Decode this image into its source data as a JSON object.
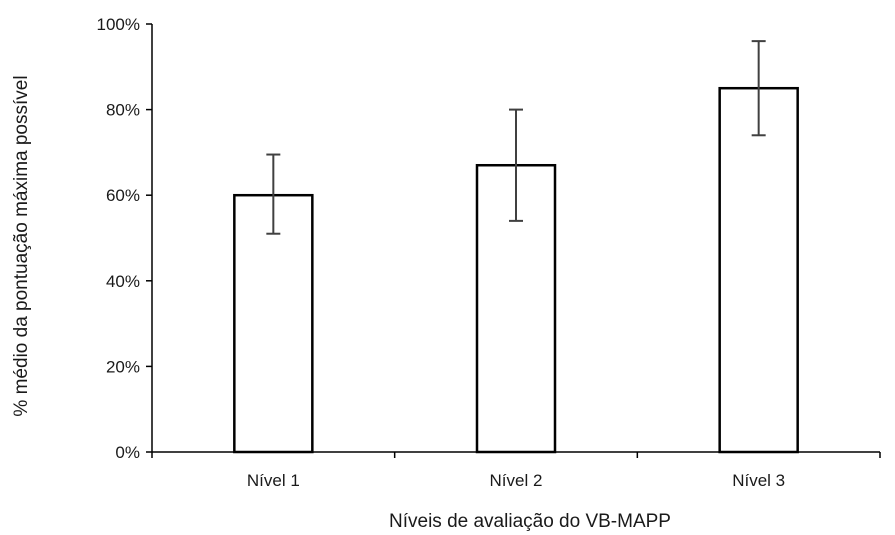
{
  "chart_data": {
    "type": "bar",
    "categories": [
      "Nível 1",
      "Nível 2",
      "Nível 3"
    ],
    "values": [
      60,
      67,
      85
    ],
    "error_low": [
      51,
      54,
      74
    ],
    "error_high": [
      69.5,
      80,
      96
    ],
    "ylim": [
      0,
      100
    ],
    "yticks": [
      0,
      20,
      40,
      60,
      80,
      100
    ],
    "ytick_labels": [
      "0%",
      "20%",
      "40%",
      "60%",
      "80%",
      "100%"
    ],
    "xlabel": "Níveis de avaliação do VB-MAPP",
    "ylabel": "% médio da pontuação máxima possível",
    "grid": false,
    "bar_fill": "#ffffff",
    "bar_stroke": "#000000"
  }
}
